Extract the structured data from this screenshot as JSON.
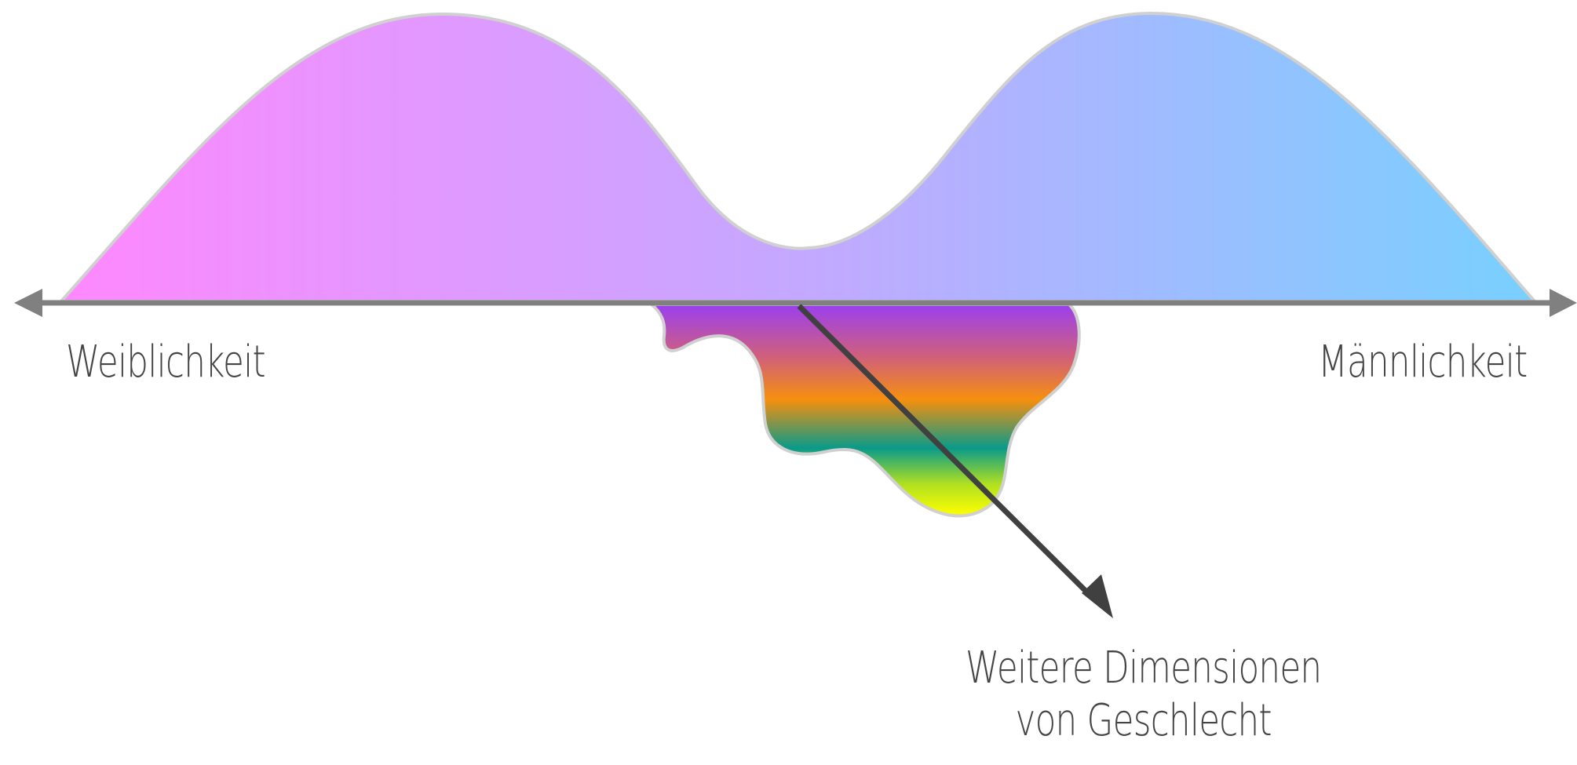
{
  "axis": {
    "left_label": "Weiblichkeit",
    "right_label": "Männlichkeit"
  },
  "dimension_label": {
    "line1": "Weitere Dimensionen",
    "line2": "von Geschlecht"
  },
  "colors": {
    "distribution_left": "#ff88ff",
    "distribution_mid": "#c4a8ff",
    "distribution_right": "#78d0ff",
    "outline": "#d0d0d0",
    "axis": "#808080",
    "arrow": "#404040",
    "text": "#444444",
    "spectrum": [
      "#9b3ff0",
      "#d0607a",
      "#f68f0e",
      "#0a9a8a",
      "#b0e020",
      "#ffff00"
    ]
  }
}
